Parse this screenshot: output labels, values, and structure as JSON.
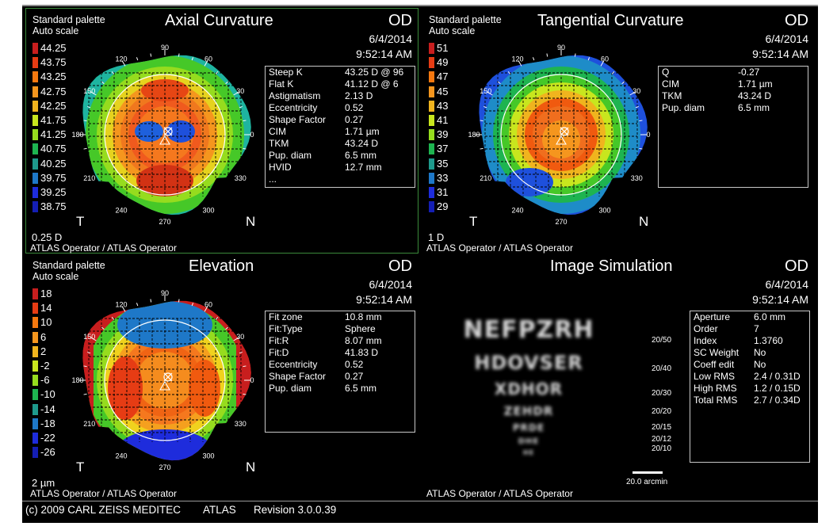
{
  "colors": {
    "frame": "#3a8a3a",
    "background": "#000000",
    "text": "#ffffff",
    "box_border": "#c8c8c8"
  },
  "palette_colors": [
    "#c81e1e",
    "#e63c14",
    "#f05a0f",
    "#f5780f",
    "#f5961e",
    "#f0b41e",
    "#e6d21e",
    "#c8e61e",
    "#96dc1e",
    "#46c828",
    "#1eb450",
    "#1e9a8c",
    "#1e78c8",
    "#1e50dc",
    "#1e2cdc",
    "#141eb4"
  ],
  "axial": {
    "palette_label": "Standard palette",
    "scale_label": "Auto scale",
    "title": "Axial Curvature",
    "eye": "OD",
    "date": "6/4/2014",
    "time": "9:52:14 AM",
    "unit": "0.25 D",
    "legend": [
      "44.25",
      "43.75",
      "43.25",
      "42.75",
      "42.25",
      "41.75",
      "41.25",
      "40.75",
      "40.25",
      "39.75",
      "39.25",
      "38.75"
    ],
    "left_side": "T",
    "right_side": "N",
    "operator": "ATLAS Operator / ATLAS Operator",
    "stats": [
      {
        "k": "Steep K",
        "v": "43.25 D @ 96"
      },
      {
        "k": "Flat K",
        "v": "41.12 D @ 6"
      },
      {
        "k": "Astigmatism",
        "v": "2.13 D"
      },
      {
        "k": "Eccentricity",
        "v": "0.52"
      },
      {
        "k": "Shape Factor",
        "v": "0.27"
      },
      {
        "k": "CIM",
        "v": "1.71 µm"
      },
      {
        "k": "TKM",
        "v": "43.24 D"
      },
      {
        "k": "Pup. diam",
        "v": "6.5 mm"
      },
      {
        "k": "HVID",
        "v": "12.7 mm"
      },
      {
        "k": "...",
        "v": ""
      }
    ]
  },
  "tangential": {
    "palette_label": "Standard palette",
    "scale_label": "Auto scale",
    "title": "Tangential Curvature",
    "eye": "OD",
    "date": "6/4/2014",
    "time": "9:52:14 AM",
    "unit": "1 D",
    "legend": [
      "51",
      "49",
      "47",
      "45",
      "43",
      "41",
      "39",
      "37",
      "35",
      "33",
      "31",
      "29"
    ],
    "left_side": "T",
    "right_side": "N",
    "operator": "ATLAS Operator / ATLAS Operator",
    "stats": [
      {
        "k": "Q",
        "v": "-0.27"
      },
      {
        "k": "CIM",
        "v": "1.71 µm"
      },
      {
        "k": "TKM",
        "v": "43.24 D"
      },
      {
        "k": "Pup. diam",
        "v": "6.5 mm"
      }
    ]
  },
  "elevation": {
    "palette_label": "Standard palette",
    "scale_label": "Auto scale",
    "title": "Elevation",
    "eye": "OD",
    "date": "6/4/2014",
    "time": "9:52:14 AM",
    "unit": "2 µm",
    "legend": [
      "18",
      "14",
      "10",
      "6",
      "2",
      "-2",
      "-6",
      "-10",
      "-14",
      "-18",
      "-22",
      "-26"
    ],
    "left_side": "T",
    "right_side": "N",
    "operator": "ATLAS Operator / ATLAS Operator",
    "stats": [
      {
        "k": "Fit zone",
        "v": "10.8 mm"
      },
      {
        "k": "Fit:Type",
        "v": "Sphere"
      },
      {
        "k": "Fit:R",
        "v": "8.07 mm"
      },
      {
        "k": "Fit:D",
        "v": "41.83 D"
      },
      {
        "k": "Eccentricity",
        "v": "0.52"
      },
      {
        "k": "Shape Factor",
        "v": "0.27"
      },
      {
        "k": "Pup. diam",
        "v": "6.5 mm"
      }
    ]
  },
  "simulation": {
    "title": "Image Simulation",
    "eye": "OD",
    "date": "6/4/2014",
    "time": "9:52:14 AM",
    "acuity_labels": [
      "20/50",
      "20/40",
      "20/30",
      "20/20",
      "20/15",
      "20/12",
      "20/10"
    ],
    "scale_label": "20.0 arcmin",
    "operator": "ATLAS Operator / ATLAS Operator",
    "chart_rows": [
      "NEFPZRH",
      "HDOVSER",
      "XDHOR",
      "ZEHDR",
      "PRDE",
      "DHE",
      "HE"
    ],
    "stats": [
      {
        "k": "Aperture",
        "v": "6.0 mm"
      },
      {
        "k": "Order",
        "v": "7"
      },
      {
        "k": "Index",
        "v": "1.3760"
      },
      {
        "k": "SC Weight",
        "v": "No"
      },
      {
        "k": "Coeff edit",
        "v": "No"
      },
      {
        "k": "Low RMS",
        "v": "2.4 / 0.31D"
      },
      {
        "k": "High RMS",
        "v": "1.2 / 0.15D"
      },
      {
        "k": "Total RMS",
        "v": "2.7 / 0.34D"
      }
    ]
  },
  "polar_labels": [
    "90",
    "120",
    "60",
    "150",
    "30",
    "180",
    "0",
    "210",
    "330",
    "240",
    "300",
    "270"
  ],
  "footer": {
    "copyright": "(c) 2009 CARL ZEISS MEDITEC",
    "product": "ATLAS",
    "revision": "Revision  3.0.0.39"
  }
}
